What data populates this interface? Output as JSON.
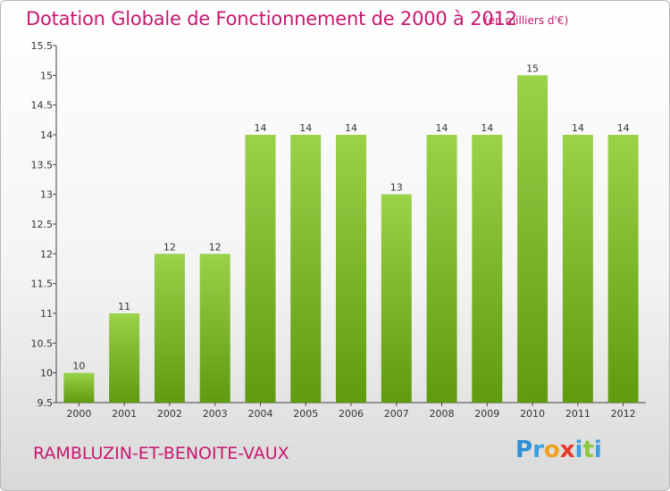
{
  "title": "Dotation Globale de Fonctionnement de 2000 à 2012",
  "unit_note": "(en milliers d'€)",
  "commune": "RAMBLUZIN-ET-BENOITE-VAUX",
  "logo": {
    "letters": [
      "P",
      "r",
      "o",
      "x",
      "i",
      "t",
      "i"
    ],
    "colors": [
      "#2e8fd6",
      "#3aa0e0",
      "#f0a020",
      "#e53a2a",
      "#3aa0e0",
      "#8cc83a",
      "#3aa0e0"
    ]
  },
  "chart_data": {
    "type": "bar",
    "categories": [
      "2000",
      "2001",
      "2002",
      "2003",
      "2004",
      "2005",
      "2006",
      "2007",
      "2008",
      "2009",
      "2010",
      "2011",
      "2012"
    ],
    "values": [
      10,
      11,
      12,
      12,
      14,
      14,
      14,
      13,
      14,
      14,
      15,
      14,
      14
    ],
    "data_labels": [
      "10",
      "11",
      "12",
      "12",
      "14",
      "14",
      "14",
      "13",
      "14",
      "14",
      "15",
      "14",
      "14"
    ],
    "yticks": [
      "9.5",
      "10",
      "10.5",
      "11",
      "11.5",
      "12",
      "12.5",
      "13",
      "13.5",
      "14",
      "14.5",
      "15",
      "15.5"
    ],
    "ylim": [
      9.5,
      15.5
    ],
    "grid": false,
    "bar_color": "#7cbf2a"
  }
}
